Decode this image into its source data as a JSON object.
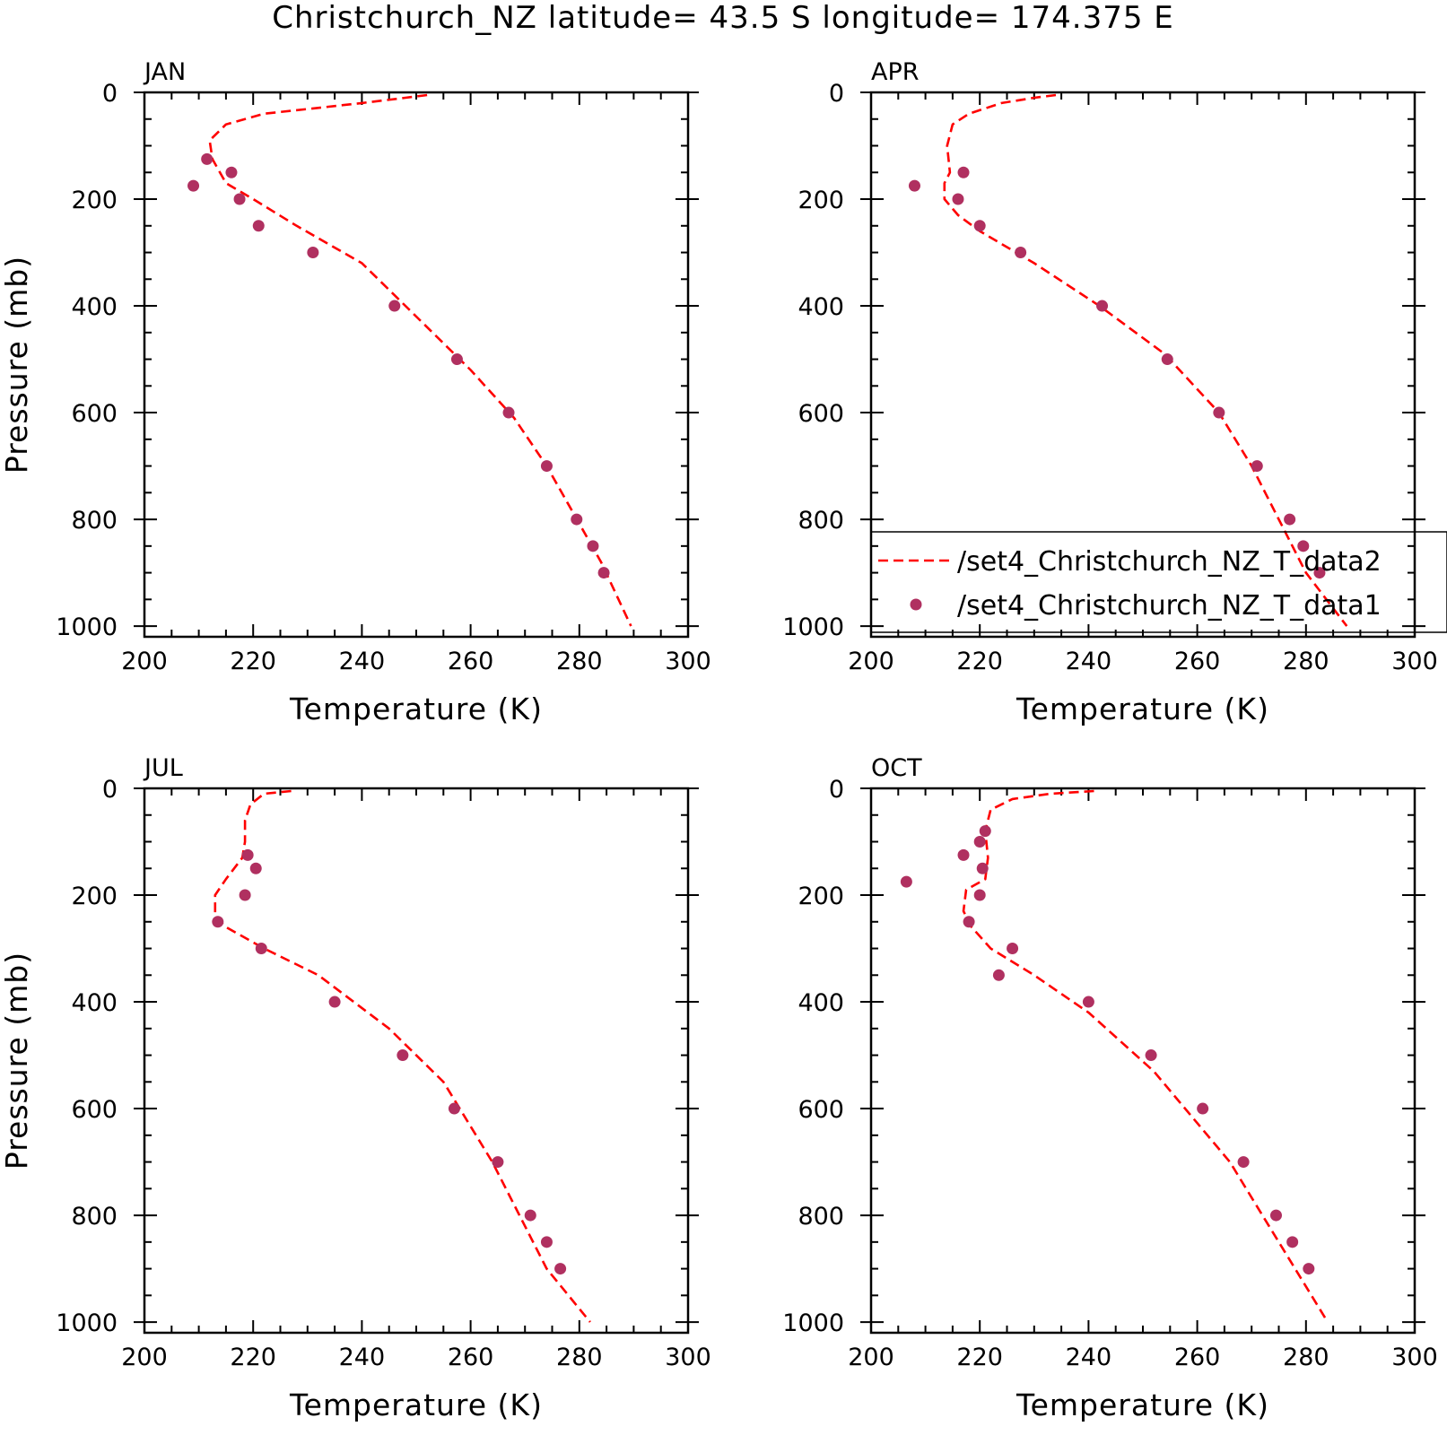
{
  "title": "Christchurch_NZ   latitude= 43.5 S longitude= 174.375 E",
  "colors": {
    "line": "#ff0000",
    "dots": "#b03060",
    "axis": "#000000"
  },
  "chart_data": [
    {
      "type": "line",
      "panel": "JAN",
      "xlabel": "Temperature (K)",
      "ylabel": "Pressure (mb)",
      "xlim": [
        200,
        300
      ],
      "ylim": [
        1020,
        0
      ],
      "xticks": [
        200,
        220,
        240,
        260,
        280,
        300
      ],
      "yticks": [
        0,
        200,
        400,
        600,
        800,
        1000
      ],
      "grid": false,
      "line": {
        "T": [
          252,
          248,
          240,
          231,
          222,
          215,
          212,
          212.5,
          215,
          220,
          228,
          240,
          252,
          260,
          268,
          274,
          279,
          284,
          289.5
        ],
        "P": [
          5,
          10,
          20,
          30,
          40,
          60,
          90,
          125,
          170,
          200,
          250,
          320,
          440,
          520,
          610,
          700,
          790,
          880,
          1000
        ]
      },
      "dots": {
        "T": [
          211.5,
          216,
          209,
          217.5,
          221,
          231,
          246,
          257.5,
          267,
          274,
          279.5,
          282.5,
          284.5
        ],
        "P": [
          125,
          150,
          175,
          200,
          250,
          300,
          400,
          500,
          600,
          700,
          800,
          850,
          900
        ]
      }
    },
    {
      "type": "line",
      "panel": "APR",
      "xlabel": "Temperature (K)",
      "ylabel": "",
      "xlim": [
        200,
        300
      ],
      "ylim": [
        1020,
        0
      ],
      "xticks": [
        200,
        220,
        240,
        260,
        280,
        300
      ],
      "yticks": [
        0,
        200,
        400,
        600,
        800,
        1000
      ],
      "grid": false,
      "legend": {
        "placement": "bottom-right",
        "entries": [
          "/set4_Christchurch_NZ_T_data2",
          "/set4_Christchurch_NZ_T_data1"
        ]
      },
      "line": {
        "T": [
          234,
          230,
          224,
          218,
          215,
          214,
          214.5,
          213.5,
          213.5,
          216,
          220,
          230,
          242,
          254,
          264,
          270,
          275,
          280,
          287.5
        ],
        "P": [
          5,
          10,
          20,
          40,
          60,
          100,
          150,
          170,
          200,
          230,
          260,
          320,
          400,
          490,
          600,
          700,
          800,
          900,
          1000
        ]
      },
      "dots": {
        "T": [
          208,
          217,
          216,
          220,
          227.5,
          242.5,
          254.5,
          264,
          271,
          277,
          279.5,
          282.5
        ],
        "P": [
          175,
          150,
          200,
          250,
          300,
          400,
          500,
          600,
          700,
          800,
          850,
          900
        ]
      }
    },
    {
      "type": "line",
      "panel": "JUL",
      "xlabel": "Temperature (K)",
      "ylabel": "Pressure (mb)",
      "xlim": [
        200,
        300
      ],
      "ylim": [
        1020,
        0
      ],
      "xticks": [
        200,
        220,
        240,
        260,
        280,
        300
      ],
      "yticks": [
        0,
        200,
        400,
        600,
        800,
        1000
      ],
      "grid": false,
      "line": {
        "T": [
          227,
          222,
          219.5,
          218.5,
          218.5,
          218,
          215,
          213,
          213,
          215,
          222,
          232,
          245,
          255,
          264,
          269,
          274,
          282
        ],
        "P": [
          5,
          10,
          30,
          60,
          100,
          130,
          170,
          200,
          240,
          260,
          300,
          350,
          450,
          550,
          700,
          800,
          900,
          1000
        ]
      },
      "dots": {
        "T": [
          219,
          220.5,
          218.5,
          213.5,
          221.5,
          235,
          247.5,
          257,
          265,
          271,
          274,
          276.5
        ],
        "P": [
          125,
          150,
          200,
          250,
          300,
          400,
          500,
          600,
          700,
          800,
          850,
          900
        ]
      }
    },
    {
      "type": "line",
      "panel": "OCT",
      "xlabel": "Temperature (K)",
      "ylabel": "",
      "xlim": [
        200,
        300
      ],
      "ylim": [
        1020,
        0
      ],
      "xticks": [
        200,
        220,
        240,
        260,
        280,
        300
      ],
      "yticks": [
        0,
        200,
        400,
        600,
        800,
        1000
      ],
      "grid": false,
      "line": {
        "T": [
          241,
          233,
          226,
          222,
          221,
          221.5,
          221,
          217.5,
          217,
          218.5,
          222,
          230,
          240,
          252,
          266,
          272,
          278,
          284
        ],
        "P": [
          5,
          10,
          20,
          40,
          80,
          130,
          170,
          190,
          230,
          260,
          300,
          350,
          420,
          530,
          700,
          800,
          900,
          1000
        ]
      },
      "dots": {
        "T": [
          221,
          220,
          217,
          220.5,
          206.5,
          220,
          218,
          226,
          223.5,
          240,
          251.5,
          261,
          268.5,
          274.5,
          277.5,
          280.5
        ],
        "P": [
          80,
          100,
          125,
          150,
          175,
          200,
          250,
          300,
          350,
          400,
          500,
          600,
          700,
          800,
          850,
          900
        ]
      }
    }
  ]
}
